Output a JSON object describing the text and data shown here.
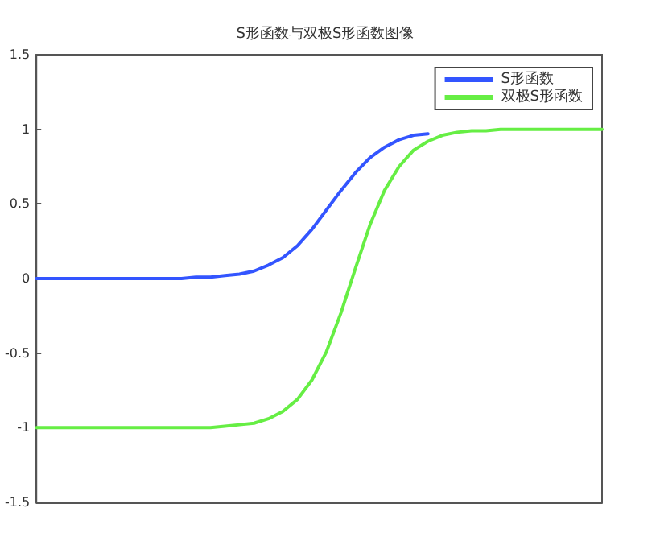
{
  "chart_data": {
    "type": "line",
    "title": "S形函数与双极S形函数图像",
    "categories": [
      null,
      null,
      null,
      null,
      null,
      null,
      null,
      null,
      null,
      null,
      null,
      null,
      null,
      null,
      null,
      null,
      null,
      null,
      null,
      null,
      null,
      null,
      null,
      null,
      null,
      null,
      null,
      null,
      null,
      null,
      null,
      null,
      null,
      null,
      null,
      null,
      null,
      null,
      null,
      null
    ],
    "series": [
      {
        "name": "S形函数",
        "color": "#3355ff",
        "values": [
          0,
          0,
          0,
          0,
          0,
          0,
          0,
          0,
          0,
          0,
          0,
          0.01,
          0.01,
          0.02,
          0.03,
          0.05,
          0.09,
          0.14,
          0.22,
          0.33,
          0.46,
          0.59,
          0.71,
          0.81,
          0.88,
          0.93,
          0.96,
          0.97,
          null,
          null,
          null,
          null,
          null,
          null,
          null,
          null,
          null,
          null,
          null,
          null
        ]
      },
      {
        "name": "双极S形函数",
        "color": "#66ee44",
        "values": [
          -1,
          -1,
          -1,
          -1,
          -1,
          -1,
          -1,
          -1,
          -1,
          -1,
          -1,
          -1,
          -1,
          -0.99,
          -0.98,
          -0.97,
          -0.94,
          -0.89,
          -0.81,
          -0.68,
          -0.49,
          -0.23,
          0.07,
          0.36,
          0.59,
          0.75,
          0.86,
          0.92,
          0.96,
          0.98,
          0.99,
          0.99,
          1,
          1,
          1,
          1,
          1,
          1,
          1,
          1
        ]
      }
    ],
    "ylim": [
      -1.5,
      1.5
    ],
    "yticks": [
      -1.5,
      -1,
      -0.5,
      0,
      0.5,
      1,
      1.5
    ],
    "tick_labels": "y",
    "grid": false,
    "legend": "top right",
    "line_style": "solid"
  }
}
